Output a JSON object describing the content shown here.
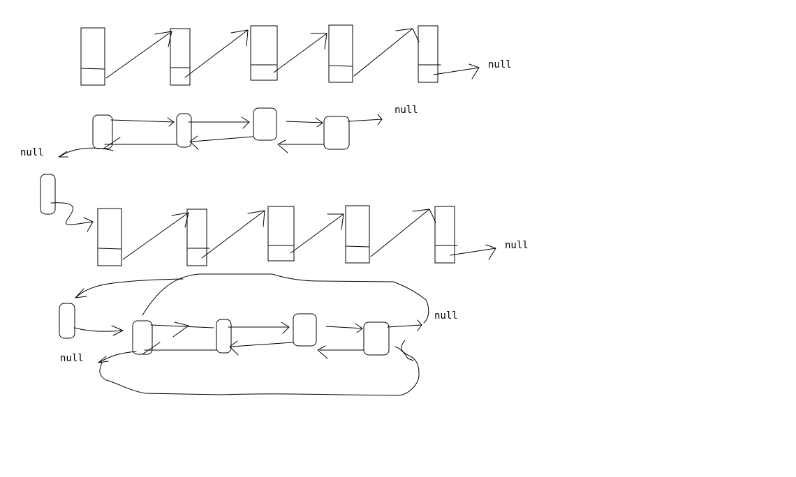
{
  "diagram": {
    "null_labels": {
      "row1_end": "null",
      "row2_end": "null",
      "row3_start": "null",
      "row4_end": "null",
      "row5_end": "null",
      "row6_start": "null"
    },
    "colors": {
      "background": "#ffffff",
      "ink": "#000000"
    }
  }
}
